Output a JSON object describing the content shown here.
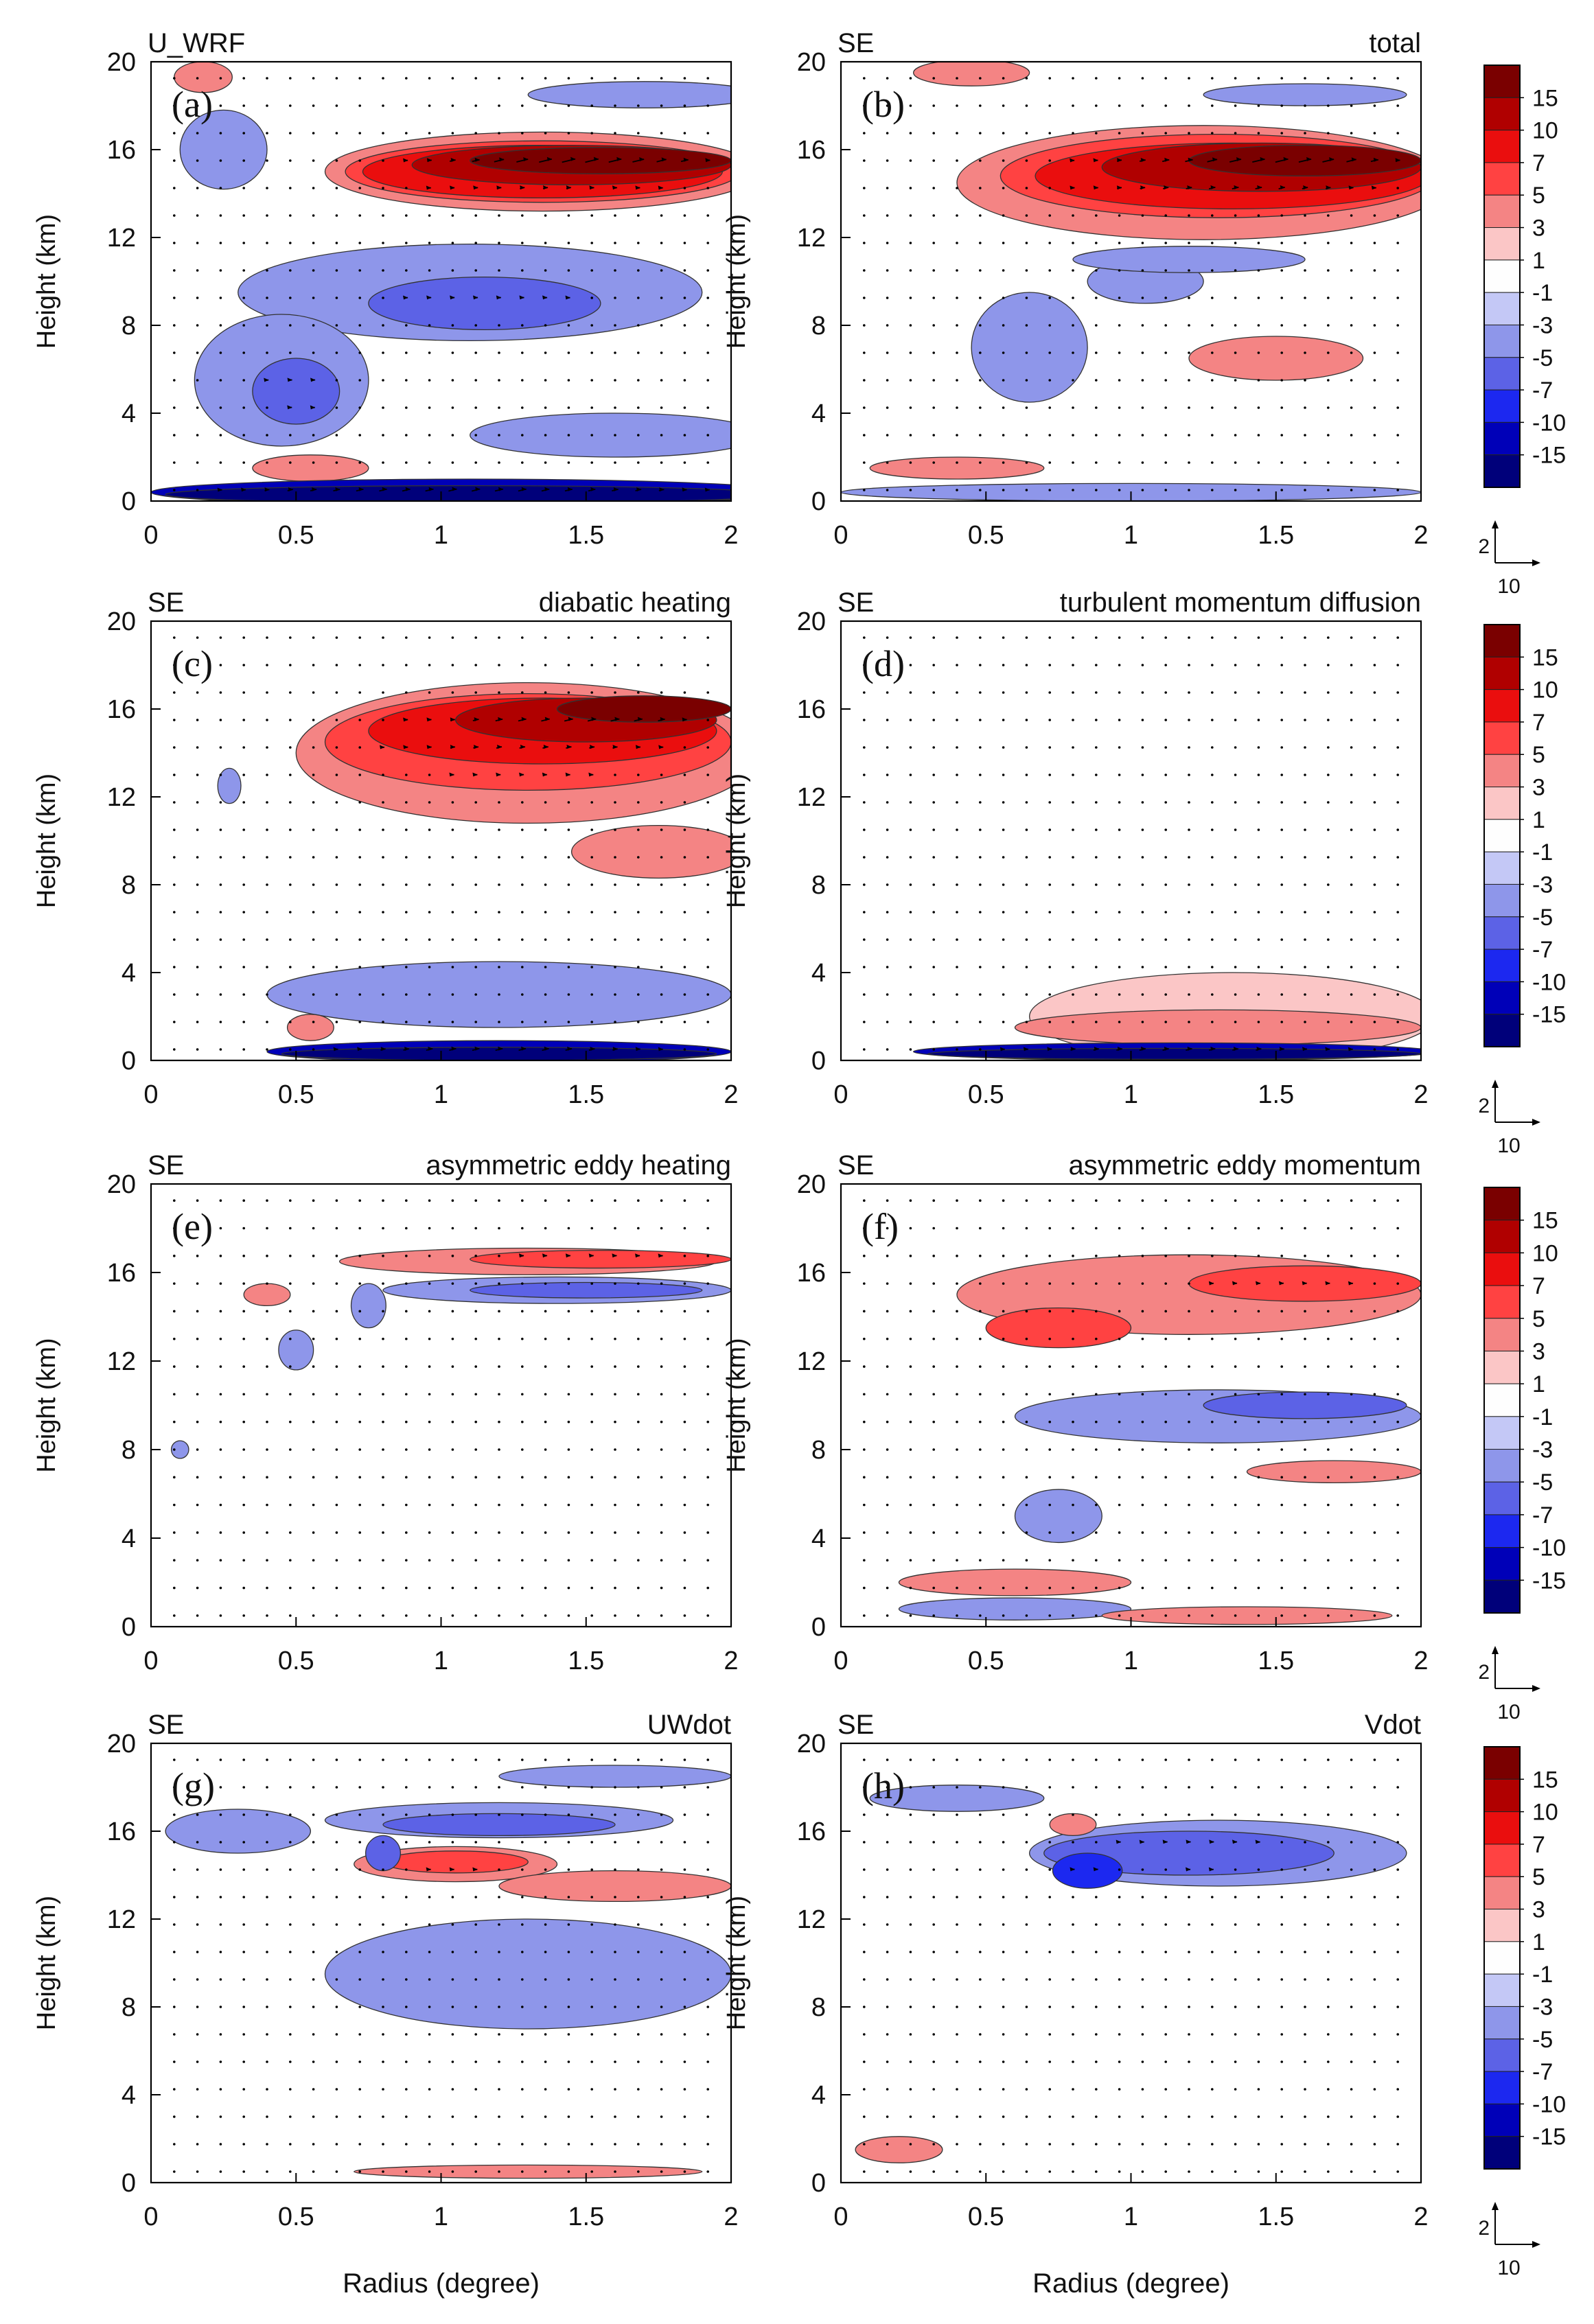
{
  "chart_data": {
    "type": "heatmap",
    "xlabel": "Radius (degree)",
    "ylabel": "Height (km)",
    "xlim": [
      0,
      2
    ],
    "ylim": [
      0,
      20
    ],
    "xticks": [
      0,
      0.5,
      1,
      1.5,
      2
    ],
    "xtick_labels": [
      "0",
      "0.5",
      "1",
      "1.5",
      "2"
    ],
    "yticks": [
      0,
      4,
      8,
      12,
      16,
      20
    ],
    "ytick_labels": [
      "0",
      "4",
      "8",
      "12",
      "16",
      "20"
    ],
    "colorbar": {
      "levels": [
        "15",
        "10",
        "7",
        "5",
        "3",
        "1",
        "-1",
        "-3",
        "-5",
        "-7",
        "-10",
        "-15"
      ],
      "colors": [
        "#7a0000",
        "#b00000",
        "#ea0e0e",
        "#ff4242",
        "#f48484",
        "#fbc6c6",
        "#fefefe",
        "#c4c8f6",
        "#8e96ea",
        "#5c62e6",
        "#1c28f0",
        "#0000b8",
        "#00007a"
      ]
    },
    "vector_reference": {
      "vertical": "2",
      "horizontal": "10"
    },
    "panels": [
      {
        "letter": "(a)",
        "left_title": "U_WRF",
        "right_title": "",
        "blobs": [
          {
            "c": [
              1.35,
              15.0
            ],
            "r": [
              0.75,
              1.8
            ],
            "v": 3
          },
          {
            "c": [
              1.35,
              15.0
            ],
            "r": [
              0.68,
              1.4
            ],
            "v": 5
          },
          {
            "c": [
              1.35,
              15.0
            ],
            "r": [
              0.62,
              1.2
            ],
            "v": 7
          },
          {
            "c": [
              1.45,
              15.3
            ],
            "r": [
              0.55,
              0.9
            ],
            "v": 10
          },
          {
            "c": [
              1.55,
              15.5
            ],
            "r": [
              0.45,
              0.6
            ],
            "v": 15
          },
          {
            "c": [
              1.1,
              9.5
            ],
            "r": [
              0.8,
              2.2
            ],
            "v": -3
          },
          {
            "c": [
              1.15,
              9.0
            ],
            "r": [
              0.4,
              1.2
            ],
            "v": -5
          },
          {
            "c": [
              0.45,
              5.5
            ],
            "r": [
              0.3,
              3.0
            ],
            "v": -3
          },
          {
            "c": [
              0.5,
              5.0
            ],
            "r": [
              0.15,
              1.5
            ],
            "v": -5
          },
          {
            "c": [
              0.25,
              16.0
            ],
            "r": [
              0.15,
              1.8
            ],
            "v": -3
          },
          {
            "c": [
              1.7,
              18.5
            ],
            "r": [
              0.4,
              0.6
            ],
            "v": -3
          },
          {
            "c": [
              1.6,
              3.0
            ],
            "r": [
              0.5,
              1.0
            ],
            "v": -3
          },
          {
            "c": [
              1.1,
              0.4
            ],
            "r": [
              1.1,
              0.6
            ],
            "v": -10
          },
          {
            "c": [
              1.1,
              0.3
            ],
            "r": [
              1.05,
              0.4
            ],
            "v": -15
          },
          {
            "c": [
              0.55,
              1.5
            ],
            "r": [
              0.2,
              0.6
            ],
            "v": 3
          },
          {
            "c": [
              0.18,
              19.3
            ],
            "r": [
              0.1,
              0.7
            ],
            "v": 3
          }
        ]
      },
      {
        "letter": "(b)",
        "left_title": "SE",
        "right_title": "total",
        "blobs": [
          {
            "c": [
              1.25,
              14.5
            ],
            "r": [
              0.85,
              2.6
            ],
            "v": 3
          },
          {
            "c": [
              1.3,
              14.8
            ],
            "r": [
              0.75,
              1.9
            ],
            "v": 5
          },
          {
            "c": [
              1.35,
              14.8
            ],
            "r": [
              0.68,
              1.5
            ],
            "v": 7
          },
          {
            "c": [
              1.45,
              15.2
            ],
            "r": [
              0.55,
              1.1
            ],
            "v": 10
          },
          {
            "c": [
              1.6,
              15.5
            ],
            "r": [
              0.4,
              0.7
            ],
            "v": 15
          },
          {
            "c": [
              1.05,
              10.0
            ],
            "r": [
              0.2,
              1.0
            ],
            "v": -3
          },
          {
            "c": [
              0.65,
              7.0
            ],
            "r": [
              0.2,
              2.5
            ],
            "v": -3
          },
          {
            "c": [
              1.2,
              11.0
            ],
            "r": [
              0.4,
              0.6
            ],
            "v": -3
          },
          {
            "c": [
              1.5,
              6.5
            ],
            "r": [
              0.3,
              1.0
            ],
            "v": 3
          },
          {
            "c": [
              1.0,
              0.4
            ],
            "r": [
              1.0,
              0.4
            ],
            "v": -3
          },
          {
            "c": [
              0.4,
              1.5
            ],
            "r": [
              0.3,
              0.5
            ],
            "v": 3
          },
          {
            "c": [
              0.45,
              19.5
            ],
            "r": [
              0.2,
              0.6
            ],
            "v": 3
          },
          {
            "c": [
              1.6,
              18.5
            ],
            "r": [
              0.35,
              0.5
            ],
            "v": -3
          }
        ]
      },
      {
        "letter": "(c)",
        "left_title": "SE",
        "right_title": "diabatic heating",
        "blobs": [
          {
            "c": [
              1.3,
              14.0
            ],
            "r": [
              0.8,
              3.2
            ],
            "v": 3
          },
          {
            "c": [
              1.3,
              14.5
            ],
            "r": [
              0.7,
              2.2
            ],
            "v": 5
          },
          {
            "c": [
              1.35,
              15.0
            ],
            "r": [
              0.6,
              1.5
            ],
            "v": 7
          },
          {
            "c": [
              1.5,
              15.5
            ],
            "r": [
              0.45,
              1.0
            ],
            "v": 10
          },
          {
            "c": [
              1.7,
              16.0
            ],
            "r": [
              0.3,
              0.6
            ],
            "v": 15
          },
          {
            "c": [
              1.75,
              9.5
            ],
            "r": [
              0.3,
              1.2
            ],
            "v": 3
          },
          {
            "c": [
              1.2,
              3.0
            ],
            "r": [
              0.8,
              1.5
            ],
            "v": -3
          },
          {
            "c": [
              1.2,
              0.4
            ],
            "r": [
              0.8,
              0.5
            ],
            "v": -10
          },
          {
            "c": [
              1.2,
              0.3
            ],
            "r": [
              0.75,
              0.3
            ],
            "v": -15
          },
          {
            "c": [
              0.27,
              12.5
            ],
            "r": [
              0.04,
              0.8
            ],
            "v": -3
          },
          {
            "c": [
              0.55,
              1.5
            ],
            "r": [
              0.08,
              0.6
            ],
            "v": 3
          }
        ]
      },
      {
        "letter": "(d)",
        "left_title": "SE",
        "right_title": "turbulent momentum diffusion",
        "blobs": [
          {
            "c": [
              1.35,
              2.0
            ],
            "r": [
              0.7,
              2.0
            ],
            "v": 1
          },
          {
            "c": [
              1.3,
              1.5
            ],
            "r": [
              0.7,
              0.8
            ],
            "v": 3
          },
          {
            "c": [
              1.15,
              0.4
            ],
            "r": [
              0.9,
              0.4
            ],
            "v": -10
          },
          {
            "c": [
              1.15,
              0.3
            ],
            "r": [
              0.85,
              0.25
            ],
            "v": -15
          }
        ]
      },
      {
        "letter": "(e)",
        "left_title": "SE",
        "right_title": "asymmetric eddy heating",
        "blobs": [
          {
            "c": [
              1.3,
              16.5
            ],
            "r": [
              0.65,
              0.6
            ],
            "v": 3
          },
          {
            "c": [
              1.55,
              16.6
            ],
            "r": [
              0.45,
              0.4
            ],
            "v": 5
          },
          {
            "c": [
              1.4,
              15.2
            ],
            "r": [
              0.6,
              0.6
            ],
            "v": -3
          },
          {
            "c": [
              1.5,
              15.2
            ],
            "r": [
              0.4,
              0.35
            ],
            "v": -5
          },
          {
            "c": [
              0.75,
              14.5
            ],
            "r": [
              0.06,
              1.0
            ],
            "v": -3
          },
          {
            "c": [
              0.5,
              12.5
            ],
            "r": [
              0.06,
              0.9
            ],
            "v": -3
          },
          {
            "c": [
              0.1,
              8.0
            ],
            "r": [
              0.03,
              0.4
            ],
            "v": -3
          },
          {
            "c": [
              0.4,
              15.0
            ],
            "r": [
              0.08,
              0.5
            ],
            "v": 3
          }
        ]
      },
      {
        "letter": "(f)",
        "left_title": "SE",
        "right_title": "asymmetric eddy momentum",
        "blobs": [
          {
            "c": [
              1.2,
              15.0
            ],
            "r": [
              0.8,
              1.8
            ],
            "v": 3
          },
          {
            "c": [
              0.75,
              13.5
            ],
            "r": [
              0.25,
              0.9
            ],
            "v": 5
          },
          {
            "c": [
              1.6,
              15.5
            ],
            "r": [
              0.4,
              0.8
            ],
            "v": 5
          },
          {
            "c": [
              1.3,
              9.5
            ],
            "r": [
              0.7,
              1.2
            ],
            "v": -3
          },
          {
            "c": [
              1.6,
              10.0
            ],
            "r": [
              0.35,
              0.6
            ],
            "v": -5
          },
          {
            "c": [
              0.75,
              5.0
            ],
            "r": [
              0.15,
              1.2
            ],
            "v": -3
          },
          {
            "c": [
              0.6,
              2.0
            ],
            "r": [
              0.4,
              0.6
            ],
            "v": 3
          },
          {
            "c": [
              0.6,
              0.8
            ],
            "r": [
              0.4,
              0.5
            ],
            "v": -3
          },
          {
            "c": [
              1.4,
              0.5
            ],
            "r": [
              0.5,
              0.4
            ],
            "v": 3
          },
          {
            "c": [
              1.7,
              7.0
            ],
            "r": [
              0.3,
              0.5
            ],
            "v": 3
          }
        ]
      },
      {
        "letter": "(g)",
        "left_title": "SE",
        "right_title": "UWdot",
        "blobs": [
          {
            "c": [
              1.2,
              16.5
            ],
            "r": [
              0.6,
              0.8
            ],
            "v": -3
          },
          {
            "c": [
              1.2,
              16.3
            ],
            "r": [
              0.4,
              0.5
            ],
            "v": -5
          },
          {
            "c": [
              1.05,
              14.5
            ],
            "r": [
              0.35,
              0.8
            ],
            "v": 3
          },
          {
            "c": [
              1.05,
              14.6
            ],
            "r": [
              0.25,
              0.5
            ],
            "v": 5
          },
          {
            "c": [
              1.6,
              13.5
            ],
            "r": [
              0.4,
              0.7
            ],
            "v": 3
          },
          {
            "c": [
              0.8,
              15.0
            ],
            "r": [
              0.06,
              0.8
            ],
            "v": -5
          },
          {
            "c": [
              1.3,
              9.5
            ],
            "r": [
              0.7,
              2.5
            ],
            "v": -3
          },
          {
            "c": [
              0.3,
              16.0
            ],
            "r": [
              0.25,
              1.0
            ],
            "v": -3
          },
          {
            "c": [
              1.6,
              18.5
            ],
            "r": [
              0.4,
              0.5
            ],
            "v": -3
          },
          {
            "c": [
              1.3,
              0.5
            ],
            "r": [
              0.6,
              0.3
            ],
            "v": 3
          }
        ]
      },
      {
        "letter": "(h)",
        "left_title": "SE",
        "right_title": "Vdot",
        "blobs": [
          {
            "c": [
              1.3,
              15.0
            ],
            "r": [
              0.65,
              1.5
            ],
            "v": -3
          },
          {
            "c": [
              1.2,
              15.0
            ],
            "r": [
              0.5,
              1.0
            ],
            "v": -5
          },
          {
            "c": [
              0.85,
              14.2
            ],
            "r": [
              0.12,
              0.8
            ],
            "v": -7
          },
          {
            "c": [
              0.4,
              17.5
            ],
            "r": [
              0.3,
              0.6
            ],
            "v": -3
          },
          {
            "c": [
              0.8,
              16.3
            ],
            "r": [
              0.08,
              0.5
            ],
            "v": 3
          },
          {
            "c": [
              0.2,
              1.5
            ],
            "r": [
              0.15,
              0.6
            ],
            "v": 3
          }
        ]
      }
    ]
  }
}
